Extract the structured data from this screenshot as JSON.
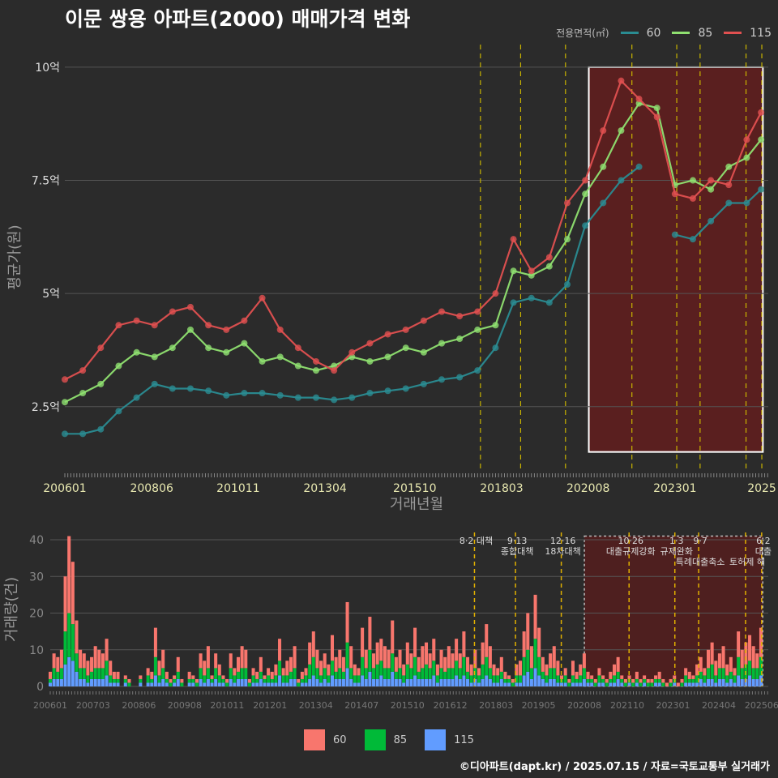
{
  "title": "이문 쌍용 아파트(2000) 매매가격 변화",
  "legend_top": {
    "title": "전용면적(㎡)",
    "items": [
      {
        "label": "60",
        "color": "#2a8c92"
      },
      {
        "label": "85",
        "color": "#8fe070"
      },
      {
        "label": "115",
        "color": "#e05050"
      }
    ]
  },
  "legend_bottom": {
    "items": [
      {
        "label": "60",
        "color": "#f8766d"
      },
      {
        "label": "85",
        "color": "#00ba38"
      },
      {
        "label": "115",
        "color": "#619cff"
      }
    ]
  },
  "footer": "©디아파트(dapt.kr) / 2025.07.15 / 자료=국토교통부 실거래가",
  "chart_data": [
    {
      "type": "line+scatter",
      "ylabel": "평균가(원)",
      "xlabel": "거래년월",
      "x_range": [
        2006.0,
        2025.6
      ],
      "y_range": [
        1.1,
        10.5
      ],
      "y_ticks": [
        {
          "value": 2.5,
          "label": "2.5억"
        },
        {
          "value": 5,
          "label": "5억"
        },
        {
          "value": 7.5,
          "label": "7.5억"
        },
        {
          "value": 10,
          "label": "10억"
        }
      ],
      "x_ticks": [
        {
          "value": 2006.0,
          "label": "200601"
        },
        {
          "value": 2008.42,
          "label": "200806"
        },
        {
          "value": 2010.83,
          "label": "201011"
        },
        {
          "value": 2013.25,
          "label": "201304"
        },
        {
          "value": 2015.75,
          "label": "201510"
        },
        {
          "value": 2018.17,
          "label": "201803"
        },
        {
          "value": 2020.58,
          "label": "202008"
        },
        {
          "value": 2023.0,
          "label": "202301"
        },
        {
          "value": 2025.42,
          "label": "2025"
        }
      ],
      "policy_lines": [
        2017.58,
        2018.7,
        2019.95,
        2021.8,
        2023.05,
        2023.7,
        2024.98,
        2025.42
      ],
      "highlight_box": {
        "x": [
          2020.6,
          2025.45
        ],
        "y": [
          1.5,
          10.0
        ]
      },
      "series": [
        {
          "name": "60",
          "color": "#2a8c92",
          "x": [
            2006.0,
            2006.5,
            2007.0,
            2007.5,
            2008.0,
            2008.5,
            2009.0,
            2009.5,
            2010.0,
            2010.5,
            2011.0,
            2011.5,
            2012.0,
            2012.5,
            2013.0,
            2013.5,
            2014.0,
            2014.5,
            2015.0,
            2015.5,
            2016.0,
            2016.5,
            2017.0,
            2017.5,
            2018.0,
            2018.5,
            2019.0,
            2019.5,
            2020.0,
            2020.5,
            2021.0,
            2021.5,
            2022.0,
            2022.5,
            2023.0,
            2023.5,
            2024.0,
            2024.5,
            2025.0,
            2025.4
          ],
          "y": [
            1.9,
            1.9,
            2.0,
            2.4,
            2.7,
            3.0,
            2.9,
            2.9,
            2.85,
            2.75,
            2.8,
            2.8,
            2.75,
            2.7,
            2.7,
            2.65,
            2.7,
            2.8,
            2.85,
            2.9,
            3.0,
            3.1,
            3.15,
            3.3,
            3.8,
            4.8,
            4.9,
            4.8,
            5.2,
            6.5,
            7.0,
            7.5,
            7.8,
            null,
            6.3,
            6.2,
            6.6,
            7.0,
            7.0,
            7.3
          ]
        },
        {
          "name": "85",
          "color": "#8fe070",
          "x": [
            2006.0,
            2006.5,
            2007.0,
            2007.5,
            2008.0,
            2008.5,
            2009.0,
            2009.5,
            2010.0,
            2010.5,
            2011.0,
            2011.5,
            2012.0,
            2012.5,
            2013.0,
            2013.5,
            2014.0,
            2014.5,
            2015.0,
            2015.5,
            2016.0,
            2016.5,
            2017.0,
            2017.5,
            2018.0,
            2018.5,
            2019.0,
            2019.5,
            2020.0,
            2020.5,
            2021.0,
            2021.5,
            2022.0,
            2022.5,
            2023.0,
            2023.5,
            2024.0,
            2024.5,
            2025.0,
            2025.4
          ],
          "y": [
            2.6,
            2.8,
            3.0,
            3.4,
            3.7,
            3.6,
            3.8,
            4.2,
            3.8,
            3.7,
            3.9,
            3.5,
            3.6,
            3.4,
            3.3,
            3.4,
            3.6,
            3.5,
            3.6,
            3.8,
            3.7,
            3.9,
            4.0,
            4.2,
            4.3,
            5.5,
            5.4,
            5.6,
            6.2,
            7.2,
            7.8,
            8.6,
            9.2,
            9.1,
            7.4,
            7.5,
            7.3,
            7.8,
            8.0,
            8.4
          ]
        },
        {
          "name": "115",
          "color": "#e05050",
          "x": [
            2006.0,
            2006.5,
            2007.0,
            2007.5,
            2008.0,
            2008.5,
            2009.0,
            2009.5,
            2010.0,
            2010.5,
            2011.0,
            2011.5,
            2012.0,
            2012.5,
            2013.0,
            2013.5,
            2014.0,
            2014.5,
            2015.0,
            2015.5,
            2016.0,
            2016.5,
            2017.0,
            2017.5,
            2018.0,
            2018.5,
            2019.0,
            2019.5,
            2020.0,
            2020.5,
            2021.0,
            2021.5,
            2022.0,
            2022.5,
            2023.0,
            2023.5,
            2024.0,
            2024.5,
            2025.0,
            2025.4
          ],
          "y": [
            3.1,
            3.3,
            3.8,
            4.3,
            4.4,
            4.3,
            4.6,
            4.7,
            4.3,
            4.2,
            4.4,
            4.9,
            4.2,
            3.8,
            3.5,
            3.3,
            3.7,
            3.9,
            4.1,
            4.2,
            4.4,
            4.6,
            4.5,
            4.6,
            5.0,
            6.2,
            5.5,
            5.8,
            7.0,
            7.5,
            8.6,
            9.7,
            9.3,
            8.9,
            7.2,
            7.1,
            7.5,
            7.4,
            8.4,
            9.0
          ]
        }
      ]
    },
    {
      "type": "bar",
      "stacked": true,
      "ylabel": "거래량(건)",
      "x_range": [
        2006.0,
        2025.6
      ],
      "y_range": [
        0,
        42
      ],
      "y_ticks": [
        0,
        10,
        20,
        30,
        40
      ],
      "x_ticks": [
        {
          "value": 2006.0,
          "label": "200601"
        },
        {
          "value": 2007.17,
          "label": "200703"
        },
        {
          "value": 2008.42,
          "label": "200806"
        },
        {
          "value": 2009.67,
          "label": "200908"
        },
        {
          "value": 2010.83,
          "label": "201011"
        },
        {
          "value": 2012.0,
          "label": "201201"
        },
        {
          "value": 2013.25,
          "label": "201304"
        },
        {
          "value": 2014.5,
          "label": "201407"
        },
        {
          "value": 2015.75,
          "label": "201510"
        },
        {
          "value": 2016.92,
          "label": "201612"
        },
        {
          "value": 2018.17,
          "label": "201803"
        },
        {
          "value": 2019.33,
          "label": "201905"
        },
        {
          "value": 2020.58,
          "label": "202008"
        },
        {
          "value": 2021.75,
          "label": "202110"
        },
        {
          "value": 2023.0,
          "label": "202301"
        },
        {
          "value": 2024.25,
          "label": "202404"
        },
        {
          "value": 2025.42,
          "label": "202506"
        }
      ],
      "policy_lines": [
        2017.58,
        2018.7,
        2019.95,
        2021.8,
        2023.05,
        2023.7,
        2024.98,
        2025.42
      ],
      "highlight_box": {
        "x": [
          2020.58,
          2025.45
        ],
        "y": [
          0,
          41
        ]
      },
      "annotations": [
        {
          "x": 2017.58,
          "lines": [
            "8·2 대책"
          ]
        },
        {
          "x": 2018.7,
          "lines": [
            "9·13",
            "종합대책"
          ]
        },
        {
          "x": 2019.95,
          "lines": [
            "12·16",
            "18차대책"
          ]
        },
        {
          "x": 2021.8,
          "lines": [
            "10·26",
            "대출규제강화"
          ]
        },
        {
          "x": 2023.05,
          "lines": [
            "1·3",
            "규제완화"
          ]
        },
        {
          "x": 2023.7,
          "lines": [
            "9·7",
            "",
            "특례대출축소"
          ]
        },
        {
          "x": 2024.98,
          "lines": [
            "",
            "",
            "토허제 해"
          ]
        },
        {
          "x": 2025.42,
          "lines": [
            "6·2",
            "대출"
          ]
        }
      ],
      "volume_total": [
        4,
        9,
        8,
        10,
        30,
        41,
        34,
        18,
        10,
        9,
        7,
        8,
        11,
        10,
        9,
        13,
        7,
        4,
        4,
        0,
        3,
        2,
        0,
        0,
        3,
        0,
        5,
        4,
        16,
        7,
        10,
        4,
        2,
        3,
        8,
        2,
        0,
        4,
        3,
        2,
        9,
        7,
        11,
        3,
        9,
        6,
        3,
        2,
        9,
        5,
        8,
        11,
        10,
        2,
        5,
        4,
        8,
        3,
        5,
        4,
        6,
        13,
        5,
        7,
        8,
        11,
        2,
        4,
        5,
        12,
        15,
        10,
        7,
        9,
        6,
        14,
        8,
        10,
        8,
        23,
        11,
        6,
        5,
        16,
        10,
        19,
        9,
        12,
        13,
        11,
        10,
        18,
        8,
        10,
        6,
        12,
        9,
        16,
        8,
        11,
        12,
        9,
        13,
        6,
        10,
        8,
        11,
        9,
        13,
        9,
        15,
        8,
        6,
        10,
        5,
        12,
        17,
        11,
        6,
        5,
        8,
        4,
        3,
        2,
        6,
        7,
        15,
        20,
        11,
        25,
        16,
        8,
        6,
        9,
        11,
        7,
        3,
        5,
        2,
        7,
        4,
        6,
        9,
        4,
        3,
        2,
        5,
        3,
        2,
        4,
        6,
        8,
        3,
        2,
        3,
        2,
        4,
        2,
        3,
        2,
        2,
        3,
        4,
        2,
        1,
        2,
        3,
        1,
        2,
        5,
        4,
        3,
        6,
        8,
        5,
        10,
        12,
        7,
        9,
        11,
        6,
        8,
        5,
        15,
        10,
        12,
        14,
        11,
        9,
        16
      ],
      "volume_85_share": 0.3,
      "volume_115_share": 0.2
    }
  ]
}
